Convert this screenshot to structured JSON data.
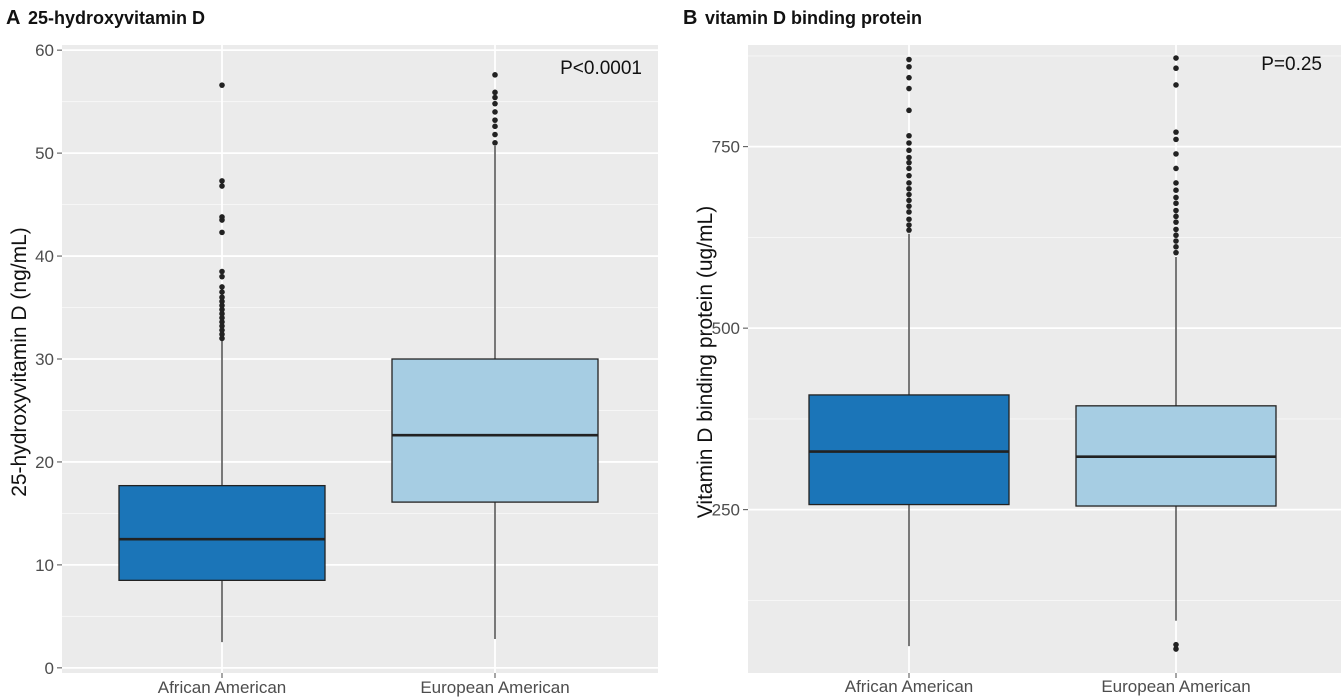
{
  "chart_data": [
    {
      "type": "boxplot",
      "panel": "A",
      "title": "25-hydroxyvitamin D",
      "ylabel": "25-hydroxyvitamin D (ng/mL)",
      "xlabel": "",
      "annotation": "P<0.0001",
      "ylim": [
        -0.5,
        60.5
      ],
      "yticks": [
        0,
        10,
        20,
        30,
        40,
        50,
        60
      ],
      "grid": true,
      "categories": [
        "African American",
        "European American"
      ],
      "colors": [
        "#1b75b8",
        "#a6cde3"
      ],
      "boxes": [
        {
          "name": "African American",
          "whisker_low": 2.5,
          "q1": 8.5,
          "median": 12.5,
          "q3": 17.7,
          "whisker_high": 31.8,
          "outliers": [
            32.0,
            32.4,
            32.8,
            33.2,
            33.6,
            34.0,
            34.4,
            34.8,
            35.2,
            35.6,
            36.0,
            36.5,
            37.0,
            38.0,
            38.5,
            42.3,
            43.5,
            43.8,
            46.8,
            47.3,
            56.6
          ]
        },
        {
          "name": "European American",
          "whisker_low": 2.8,
          "q1": 16.1,
          "median": 22.6,
          "q3": 30.0,
          "whisker_high": 50.7,
          "outliers": [
            51.0,
            51.8,
            52.6,
            53.2,
            54.0,
            54.8,
            55.4,
            55.9,
            57.6
          ]
        }
      ]
    },
    {
      "type": "boxplot",
      "panel": "B",
      "title": "vitamin D binding protein",
      "ylabel": "Vitamin D binding protein (ug/mL)",
      "xlabel": "",
      "annotation": "P=0.25",
      "ylim": [
        25,
        890
      ],
      "yticks": [
        250,
        500,
        750
      ],
      "grid": true,
      "categories": [
        "African American",
        "European American"
      ],
      "colors": [
        "#1b75b8",
        "#a6cde3"
      ],
      "boxes": [
        {
          "name": "African American",
          "whisker_low": 62,
          "q1": 257,
          "median": 330,
          "q3": 408,
          "whisker_high": 630,
          "outliers": [
            635,
            642,
            650,
            660,
            668,
            676,
            684,
            692,
            700,
            710,
            720,
            728,
            735,
            745,
            755,
            765,
            800,
            830,
            845,
            860,
            870
          ]
        },
        {
          "name": "European American",
          "whisker_low": 97,
          "q1": 255,
          "median": 323,
          "q3": 393,
          "whisker_high": 598,
          "outliers": [
            604,
            612,
            620,
            628,
            636,
            646,
            654,
            662,
            672,
            680,
            690,
            700,
            720,
            740,
            760,
            770,
            835,
            858,
            872,
            58,
            64
          ]
        }
      ]
    }
  ]
}
